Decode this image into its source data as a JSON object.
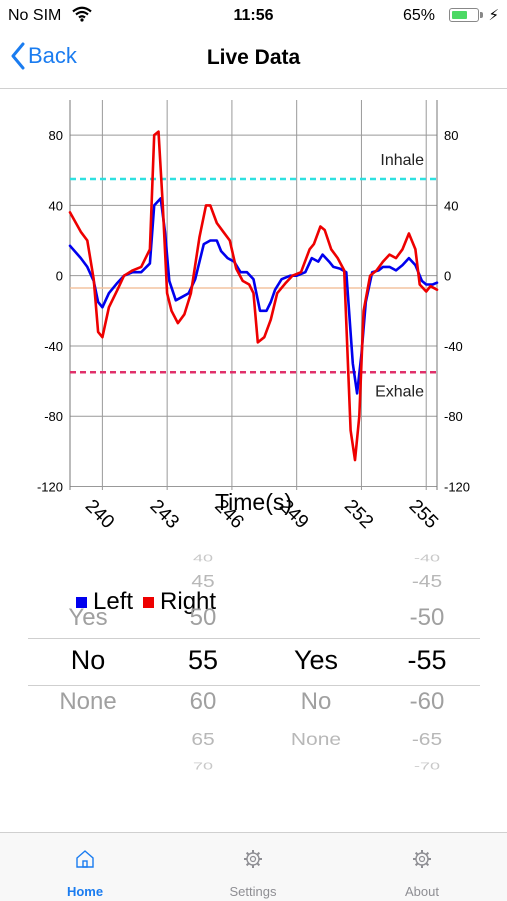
{
  "status": {
    "carrier": "No SIM",
    "time": "11:56",
    "battery": "65%",
    "battery_level": 0.65
  },
  "nav": {
    "back_label": "Back",
    "title": "Live Data"
  },
  "chart_data": {
    "type": "line",
    "xlabel": "Time(s)",
    "x_ticks": [
      240,
      243,
      246,
      249,
      252,
      255
    ],
    "xlim": [
      238.5,
      255.5
    ],
    "ylim": [
      -122,
      100
    ],
    "y_ticks": [
      80,
      40,
      0,
      -40,
      -80,
      -120
    ],
    "threshold_lines": [
      {
        "label": "Inhale",
        "value": 55,
        "color": "#2ee0e0"
      },
      {
        "label": "Exhale",
        "value": -55,
        "color": "#e0306a"
      }
    ],
    "reference_value": -7,
    "series": [
      {
        "name": "Left",
        "color": "#0000ee",
        "x": [
          238.5,
          239,
          239.3,
          239.6,
          239.8,
          240,
          240.3,
          240.7,
          241,
          241.4,
          241.8,
          242.2,
          242.4,
          242.7,
          242.9,
          243.1,
          243.4,
          243.7,
          244,
          244.3,
          244.7,
          245,
          245.3,
          245.5,
          245.8,
          246.1,
          246.4,
          246.7,
          247,
          247.3,
          247.6,
          247.8,
          248,
          248.3,
          248.7,
          249,
          249.4,
          249.7,
          250,
          250.2,
          250.5,
          250.7,
          251,
          251.3,
          251.6,
          251.8,
          252,
          252.2,
          252.5,
          252.8,
          253,
          253.3,
          253.6,
          253.9,
          254.2,
          254.5,
          254.8,
          255,
          255.3,
          255.5
        ],
        "y": [
          17,
          10,
          5,
          -3,
          -15,
          -18,
          -10,
          -4,
          0,
          2,
          2,
          7,
          40,
          44,
          25,
          -3,
          -14,
          -12,
          -10,
          -2,
          18,
          20,
          20,
          14,
          10,
          8,
          2,
          2,
          -2,
          -20,
          -20,
          -15,
          -8,
          -2,
          0,
          0,
          2,
          10,
          8,
          12,
          8,
          5,
          4,
          2,
          -50,
          -67,
          -45,
          -15,
          2,
          3,
          5,
          5,
          3,
          6,
          10,
          6,
          -3,
          -5,
          -5,
          -4
        ]
      },
      {
        "name": "Right",
        "color": "#ee0000",
        "x": [
          238.5,
          239,
          239.3,
          239.6,
          239.8,
          240,
          240.3,
          240.7,
          241,
          241.4,
          241.8,
          242.2,
          242.4,
          242.6,
          242.8,
          243,
          243.2,
          243.5,
          243.8,
          244.1,
          244.5,
          244.8,
          245,
          245.3,
          245.6,
          245.9,
          246.2,
          246.5,
          246.8,
          247,
          247.2,
          247.5,
          247.8,
          248.1,
          248.5,
          248.8,
          249.2,
          249.6,
          249.8,
          250.1,
          250.3,
          250.6,
          250.9,
          251.2,
          251.5,
          251.7,
          251.9,
          252.1,
          252.4,
          252.7,
          253,
          253.3,
          253.6,
          253.9,
          254.2,
          254.5,
          254.7,
          255,
          255.2,
          255.5
        ],
        "y": [
          36,
          25,
          20,
          -2,
          -32,
          -35,
          -18,
          -8,
          0,
          3,
          5,
          15,
          80,
          82,
          40,
          -10,
          -20,
          -27,
          -22,
          -10,
          22,
          40,
          40,
          30,
          25,
          20,
          4,
          -3,
          -5,
          -10,
          -38,
          -35,
          -25,
          -10,
          -4,
          0,
          2,
          15,
          18,
          28,
          26,
          15,
          10,
          3,
          -88,
          -105,
          -80,
          -20,
          0,
          3,
          8,
          12,
          10,
          15,
          24,
          15,
          -5,
          -9,
          -6,
          -8
        ]
      }
    ]
  },
  "picker": {
    "columns": [
      {
        "above": [
          "Yes"
        ],
        "selected": "No",
        "below": [
          "None"
        ]
      },
      {
        "above": [
          "40",
          "45",
          "50"
        ],
        "selected": "55",
        "below": [
          "60",
          "65",
          "70"
        ]
      },
      {
        "above": [],
        "selected": "Yes",
        "below": [
          "No",
          "None"
        ]
      },
      {
        "above": [
          "-40",
          "-45",
          "-50"
        ],
        "selected": "-55",
        "below": [
          "-60",
          "-65",
          "-70"
        ]
      }
    ]
  },
  "tabs": [
    {
      "label": "Home",
      "icon": "home-icon",
      "active": true
    },
    {
      "label": "Settings",
      "icon": "gear-icon",
      "active": false
    },
    {
      "label": "About",
      "icon": "gear-icon",
      "active": false
    }
  ],
  "colors": {
    "accent": "#1a7cf0",
    "left": "#0000ee",
    "right": "#ee0000"
  }
}
